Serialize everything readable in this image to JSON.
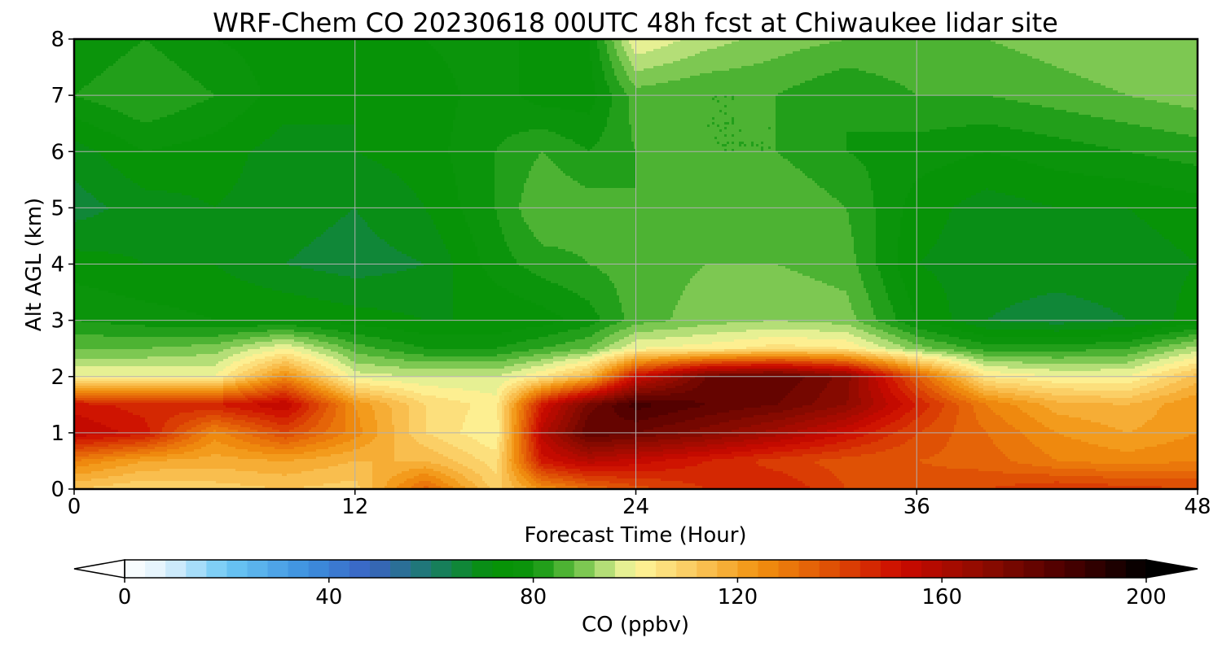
{
  "chart_data": {
    "type": "heatmap",
    "title": "WRF-Chem CO  20230618 00UTC 48h fcst at Chiwaukee lidar site",
    "xlabel": "Forecast Time (Hour)",
    "ylabel": "Alt AGL (km)",
    "xlim": [
      0,
      48
    ],
    "ylim": [
      0,
      8
    ],
    "xticks": [
      0,
      12,
      24,
      36,
      48
    ],
    "yticks": [
      0,
      1,
      2,
      3,
      4,
      5,
      6,
      7,
      8
    ],
    "grid": true,
    "colorbar": {
      "label": "CO  (ppbv)",
      "min": 0,
      "max": 200,
      "step": 4,
      "ticks": [
        0,
        40,
        80,
        120,
        160,
        200
      ],
      "extend": "both",
      "orientation": "horizontal",
      "colors": [
        {
          "v": 0,
          "c": "#ffffff"
        },
        {
          "v": 8,
          "c": "#dff1fc"
        },
        {
          "v": 20,
          "c": "#6cc8f5"
        },
        {
          "v": 36,
          "c": "#3c8fde"
        },
        {
          "v": 48,
          "c": "#3a63c2"
        },
        {
          "v": 60,
          "c": "#1b7b6b"
        },
        {
          "v": 72,
          "c": "#059205"
        },
        {
          "v": 80,
          "c": "#0d950d"
        },
        {
          "v": 88,
          "c": "#62bd3f"
        },
        {
          "v": 96,
          "c": "#cfe98a"
        },
        {
          "v": 100,
          "c": "#fdf79c"
        },
        {
          "v": 112,
          "c": "#fbc75b"
        },
        {
          "v": 124,
          "c": "#f1920f"
        },
        {
          "v": 136,
          "c": "#e25b06"
        },
        {
          "v": 152,
          "c": "#cc0a00"
        },
        {
          "v": 168,
          "c": "#8e0b00"
        },
        {
          "v": 184,
          "c": "#4c0000"
        },
        {
          "v": 200,
          "c": "#000000"
        }
      ]
    },
    "x": [
      0,
      3,
      6,
      9,
      12,
      15,
      18,
      20,
      22,
      24,
      27,
      30,
      33,
      36,
      39,
      42,
      45,
      48
    ],
    "y": [
      0,
      0.5,
      1,
      1.5,
      2,
      2.5,
      3,
      4,
      5,
      6,
      7,
      8
    ],
    "z": [
      [
        112,
        108,
        110,
        112,
        110,
        134,
        110,
        124,
        132,
        138,
        144,
        148,
        140,
        138,
        140,
        144,
        142,
        140
      ],
      [
        128,
        120,
        118,
        120,
        116,
        116,
        106,
        150,
        158,
        154,
        148,
        142,
        138,
        136,
        134,
        128,
        126,
        128
      ],
      [
        156,
        150,
        126,
        140,
        126,
        108,
        100,
        158,
        180,
        176,
        170,
        162,
        152,
        140,
        132,
        124,
        120,
        124
      ],
      [
        150,
        146,
        148,
        156,
        124,
        108,
        102,
        150,
        174,
        186,
        180,
        176,
        168,
        148,
        128,
        118,
        116,
        124
      ],
      [
        100,
        100,
        100,
        126,
        98,
        96,
        96,
        104,
        116,
        152,
        176,
        180,
        170,
        136,
        104,
        100,
        100,
        114
      ],
      [
        88,
        88,
        90,
        100,
        86,
        80,
        80,
        84,
        88,
        100,
        102,
        106,
        104,
        90,
        82,
        82,
        84,
        94
      ],
      [
        80,
        78,
        76,
        76,
        74,
        72,
        72,
        74,
        78,
        86,
        90,
        92,
        90,
        76,
        68,
        66,
        68,
        74
      ],
      [
        74,
        72,
        72,
        68,
        66,
        68,
        78,
        82,
        84,
        86,
        88,
        88,
        86,
        72,
        70,
        70,
        70,
        72
      ],
      [
        66,
        70,
        72,
        70,
        68,
        72,
        80,
        88,
        86,
        84,
        86,
        88,
        84,
        74,
        70,
        72,
        72,
        74
      ],
      [
        70,
        76,
        74,
        70,
        72,
        74,
        80,
        84,
        80,
        84,
        84,
        84,
        80,
        78,
        76,
        78,
        80,
        82
      ],
      [
        80,
        84,
        80,
        74,
        72,
        74,
        78,
        74,
        74,
        86,
        84,
        84,
        80,
        84,
        84,
        86,
        88,
        90
      ],
      [
        76,
        80,
        76,
        74,
        74,
        76,
        78,
        74,
        76,
        100,
        94,
        90,
        88,
        88,
        88,
        90,
        92,
        90
      ]
    ]
  }
}
